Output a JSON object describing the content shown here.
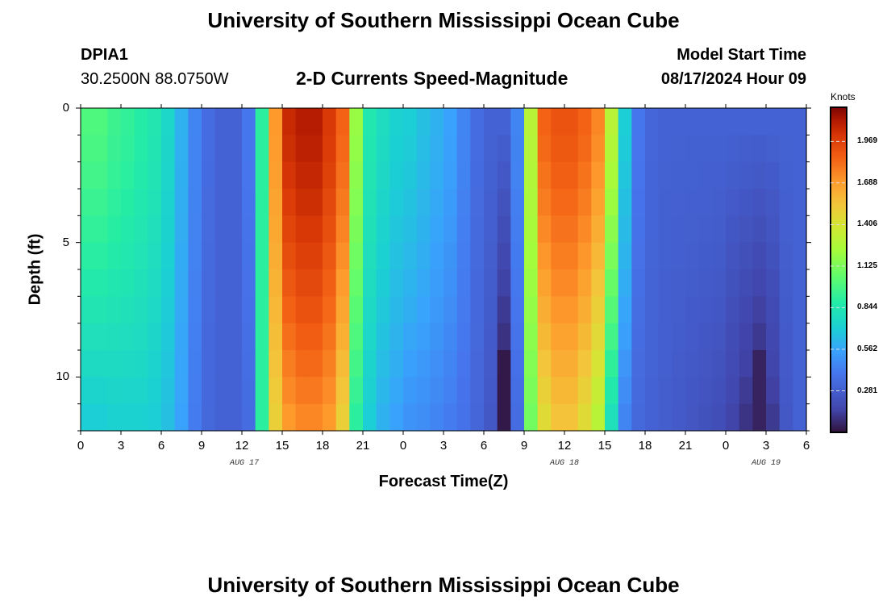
{
  "page": {
    "title_top": "University of Southern Mississippi Ocean Cube",
    "title_bottom": "University of Southern Mississippi Ocean Cube",
    "station": "DPIA1",
    "coords": "30.2500N  88.0750W",
    "subtitle": "2-D Currents Speed-Magnitude",
    "start_label": "Model Start Time",
    "start_value": "08/17/2024 Hour 09",
    "colorbar_label": "Knots",
    "date_labels": [
      "AUG 17",
      "AUG 18",
      "AUG 19"
    ]
  },
  "chart_data": {
    "type": "heatmap",
    "title": "2-D Currents Speed-Magnitude",
    "xlabel": "Forecast Time(Z)",
    "ylabel": "Depth (ft)",
    "x_tick_labels": [
      "0",
      "3",
      "6",
      "9",
      "12",
      "15",
      "18",
      "21",
      "0",
      "3",
      "6",
      "9",
      "12",
      "15",
      "18",
      "21",
      "0",
      "3",
      "6"
    ],
    "y_tick_labels": [
      "0",
      "5",
      "10"
    ],
    "xlim": [
      0,
      54
    ],
    "ylim": [
      0,
      12
    ],
    "colorbar": {
      "label": "Knots",
      "ticks": [
        "1.969",
        "1.688",
        "1.406",
        "1.125",
        "0.844",
        "0.562",
        "0.281"
      ],
      "range": [
        0,
        2.2
      ]
    },
    "profile_hours": [
      0,
      1,
      2,
      3,
      4,
      5,
      6,
      7,
      8,
      9,
      10,
      11,
      12,
      13,
      14,
      15,
      16,
      17,
      18,
      19,
      20,
      21,
      22,
      23,
      24,
      25,
      26,
      27,
      28,
      29,
      30,
      31,
      32,
      33,
      34,
      35,
      36,
      37,
      38,
      39,
      40,
      41,
      42,
      43,
      44,
      45,
      46,
      47,
      48,
      49,
      50,
      51,
      52,
      53,
      54
    ],
    "surface_speed_knots": [
      1.0,
      1.0,
      0.95,
      0.92,
      0.88,
      0.84,
      0.75,
      0.6,
      0.45,
      0.35,
      0.3,
      0.3,
      0.4,
      0.9,
      1.7,
      2.05,
      2.1,
      2.1,
      2.0,
      1.85,
      1.2,
      0.85,
      0.78,
      0.72,
      0.7,
      0.65,
      0.6,
      0.55,
      0.45,
      0.35,
      0.3,
      0.3,
      0.45,
      1.3,
      1.85,
      1.9,
      1.9,
      1.85,
      1.75,
      1.3,
      0.7,
      0.4,
      0.32,
      0.3,
      0.3,
      0.3,
      0.3,
      0.3,
      0.3,
      0.3,
      0.3,
      0.3,
      0.3,
      0.3,
      0.3
    ],
    "bottom_speed_knots": [
      0.7,
      0.7,
      0.72,
      0.72,
      0.72,
      0.7,
      0.65,
      0.55,
      0.42,
      0.33,
      0.3,
      0.3,
      0.35,
      0.9,
      1.5,
      1.7,
      1.75,
      1.75,
      1.7,
      1.5,
      0.9,
      0.7,
      0.6,
      0.55,
      0.5,
      0.48,
      0.45,
      0.42,
      0.38,
      0.32,
      0.25,
      0.02,
      0.35,
      1.1,
      1.45,
      1.55,
      1.55,
      1.45,
      1.3,
      0.8,
      0.45,
      0.33,
      0.3,
      0.28,
      0.26,
      0.24,
      0.22,
      0.2,
      0.15,
      0.1,
      0.05,
      0.12,
      0.25,
      0.3,
      0.3
    ]
  }
}
